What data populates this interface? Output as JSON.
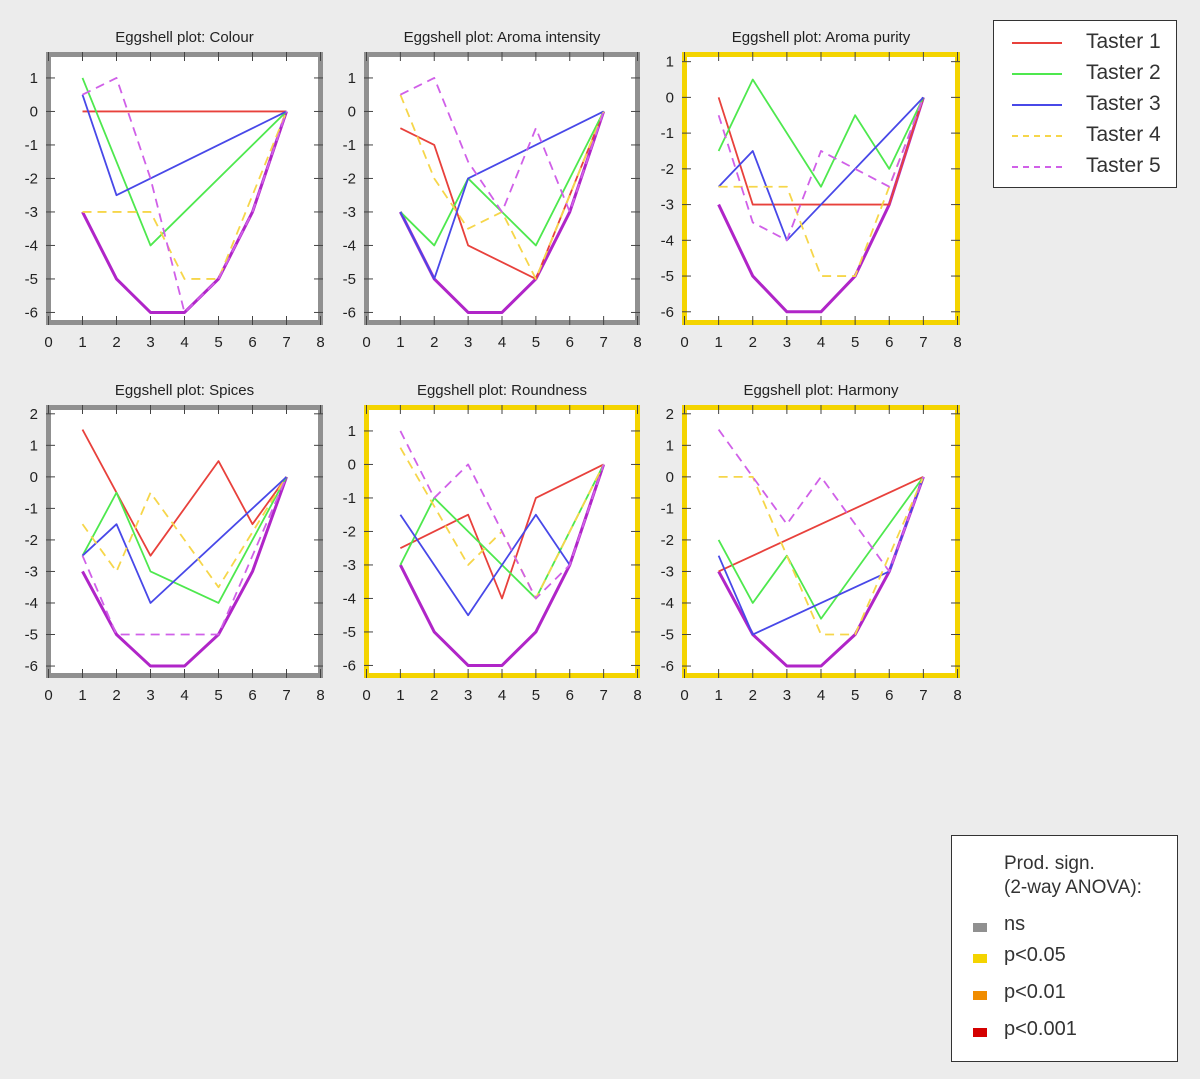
{
  "colors": {
    "background": "#ececec",
    "ns": "#909090",
    "p05": "#f4d400",
    "p01": "#f08c00",
    "p001": "#d40000",
    "envelope": "#b025c8"
  },
  "legend": {
    "items": [
      {
        "label": "Taster 1",
        "color": "#e8413c",
        "dash": false
      },
      {
        "label": "Taster 2",
        "color": "#4ee84e",
        "dash": false
      },
      {
        "label": "Taster 3",
        "color": "#4848e8",
        "dash": false
      },
      {
        "label": "Taster 4",
        "color": "#f6d64a",
        "dash": true
      },
      {
        "label": "Taster 5",
        "color": "#d060e8",
        "dash": true
      }
    ]
  },
  "significance_legend": {
    "title_line1": "Prod. sign.",
    "title_line2": "(2-way ANOVA):",
    "items": [
      {
        "label": "ns",
        "color": "#909090"
      },
      {
        "label": "p<0.05",
        "color": "#f4d400"
      },
      {
        "label": "p<0.01",
        "color": "#f08c00"
      },
      {
        "label": "p<0.001",
        "color": "#d40000"
      }
    ]
  },
  "chart_data": [
    {
      "type": "line",
      "title": "Eggshell plot: Colour",
      "significance": "ns",
      "xlim": [
        0,
        8
      ],
      "ylim": [
        -6.3,
        1.7
      ],
      "xticks": [
        0,
        1,
        2,
        3,
        4,
        5,
        6,
        7,
        8
      ],
      "yticks": [
        1,
        0,
        -1,
        -2,
        -3,
        -4,
        -5,
        -6
      ],
      "envelope": {
        "x": [
          1,
          2,
          3,
          4,
          5,
          6,
          7
        ],
        "y": [
          -3,
          -5,
          -6,
          -6,
          -5,
          -3,
          0
        ]
      },
      "series": [
        {
          "name": "Taster 1",
          "x": [
            1,
            7
          ],
          "y": [
            0,
            0
          ]
        },
        {
          "name": "Taster 2",
          "x": [
            1,
            3,
            7
          ],
          "y": [
            1,
            -4,
            0
          ]
        },
        {
          "name": "Taster 3",
          "x": [
            1,
            2,
            7
          ],
          "y": [
            0.5,
            -2.5,
            0
          ]
        },
        {
          "name": "Taster 4",
          "x": [
            1,
            3,
            4,
            5,
            7
          ],
          "y": [
            -3,
            -3,
            -5,
            -5,
            0
          ]
        },
        {
          "name": "Taster 5",
          "x": [
            1,
            2,
            3,
            4,
            5,
            6,
            7
          ],
          "y": [
            0.5,
            1,
            -2,
            -6,
            -5,
            -3,
            0
          ]
        }
      ]
    },
    {
      "type": "line",
      "title": "Eggshell plot: Aroma intensity",
      "significance": "ns",
      "xlim": [
        0,
        8
      ],
      "ylim": [
        -6.3,
        1.7
      ],
      "xticks": [
        0,
        1,
        2,
        3,
        4,
        5,
        6,
        7,
        8
      ],
      "yticks": [
        1,
        0,
        -1,
        -2,
        -3,
        -4,
        -5,
        -6
      ],
      "envelope": {
        "x": [
          1,
          2,
          3,
          4,
          5,
          6,
          7
        ],
        "y": [
          -3,
          -5,
          -6,
          -6,
          -5,
          -3,
          0
        ]
      },
      "series": [
        {
          "name": "Taster 1",
          "x": [
            1,
            2,
            3,
            5,
            7
          ],
          "y": [
            -0.5,
            -1,
            -4,
            -5,
            0
          ]
        },
        {
          "name": "Taster 2",
          "x": [
            1,
            2,
            3,
            5,
            7
          ],
          "y": [
            -3,
            -4,
            -2,
            -4,
            0
          ]
        },
        {
          "name": "Taster 3",
          "x": [
            1,
            2,
            3,
            7
          ],
          "y": [
            -3,
            -5,
            -2,
            0
          ]
        },
        {
          "name": "Taster 4",
          "x": [
            1,
            2,
            3,
            4,
            5,
            7
          ],
          "y": [
            0.5,
            -2,
            -3.5,
            -3,
            -5,
            0
          ]
        },
        {
          "name": "Taster 5",
          "x": [
            1,
            2,
            3,
            4,
            5,
            6,
            7
          ],
          "y": [
            0.5,
            1,
            -1.5,
            -3,
            -0.5,
            -3,
            0
          ]
        }
      ]
    },
    {
      "type": "line",
      "title": "Eggshell plot: Aroma purity",
      "significance": "p<0.05",
      "xlim": [
        0,
        8
      ],
      "ylim": [
        -6.3,
        1.2
      ],
      "xticks": [
        0,
        1,
        2,
        3,
        4,
        5,
        6,
        7,
        8
      ],
      "yticks": [
        1,
        0,
        -1,
        -2,
        -3,
        -4,
        -5,
        -6
      ],
      "envelope": {
        "x": [
          1,
          2,
          3,
          4,
          5,
          6,
          7
        ],
        "y": [
          -3,
          -5,
          -6,
          -6,
          -5,
          -3,
          0
        ]
      },
      "series": [
        {
          "name": "Taster 1",
          "x": [
            1,
            2,
            6,
            7
          ],
          "y": [
            0,
            -3,
            -3,
            0
          ]
        },
        {
          "name": "Taster 2",
          "x": [
            1,
            2,
            4,
            5,
            6,
            7
          ],
          "y": [
            -1.5,
            0.5,
            -2.5,
            -0.5,
            -2,
            0
          ]
        },
        {
          "name": "Taster 3",
          "x": [
            1,
            2,
            3,
            7
          ],
          "y": [
            -2.5,
            -1.5,
            -4,
            0
          ]
        },
        {
          "name": "Taster 4",
          "x": [
            1,
            3,
            4,
            5,
            7
          ],
          "y": [
            -2.5,
            -2.5,
            -5,
            -5,
            0
          ]
        },
        {
          "name": "Taster 5",
          "x": [
            1,
            2,
            3,
            4,
            6,
            7
          ],
          "y": [
            -0.5,
            -3.5,
            -4,
            -1.5,
            -2.5,
            0
          ]
        }
      ]
    },
    {
      "type": "line",
      "title": "Eggshell plot: Spices",
      "significance": "ns",
      "xlim": [
        0,
        8
      ],
      "ylim": [
        -6.3,
        2.2
      ],
      "xticks": [
        0,
        1,
        2,
        3,
        4,
        5,
        6,
        7,
        8
      ],
      "yticks": [
        2,
        1,
        0,
        -1,
        -2,
        -3,
        -4,
        -5,
        -6
      ],
      "envelope": {
        "x": [
          1,
          2,
          3,
          4,
          5,
          6,
          7
        ],
        "y": [
          -3,
          -5,
          -6,
          -6,
          -5,
          -3,
          0
        ]
      },
      "series": [
        {
          "name": "Taster 1",
          "x": [
            1,
            3,
            5,
            6,
            7
          ],
          "y": [
            1.5,
            -2.5,
            0.5,
            -1.5,
            0
          ]
        },
        {
          "name": "Taster 2",
          "x": [
            1,
            2,
            3,
            5,
            7
          ],
          "y": [
            -2.5,
            -0.5,
            -3,
            -4,
            0
          ]
        },
        {
          "name": "Taster 3",
          "x": [
            1,
            2,
            3,
            7
          ],
          "y": [
            -2.5,
            -1.5,
            -4,
            0
          ]
        },
        {
          "name": "Taster 4",
          "x": [
            1,
            2,
            3,
            5,
            7
          ],
          "y": [
            -1.5,
            -3,
            -0.5,
            -3.5,
            0
          ]
        },
        {
          "name": "Taster 5",
          "x": [
            1,
            2,
            5,
            7
          ],
          "y": [
            -2.5,
            -5,
            -5,
            0
          ]
        }
      ]
    },
    {
      "type": "line",
      "title": "Eggshell plot: Roundness",
      "significance": "p<0.05",
      "xlim": [
        0,
        8
      ],
      "ylim": [
        -6.3,
        1.7
      ],
      "xticks": [
        0,
        1,
        2,
        3,
        4,
        5,
        6,
        7,
        8
      ],
      "yticks": [
        1,
        0,
        -1,
        -2,
        -3,
        -4,
        -5,
        -6
      ],
      "envelope": {
        "x": [
          1,
          2,
          3,
          4,
          5,
          6,
          7
        ],
        "y": [
          -3,
          -5,
          -6,
          -6,
          -5,
          -3,
          0
        ]
      },
      "series": [
        {
          "name": "Taster 1",
          "x": [
            1,
            3,
            4,
            5,
            7
          ],
          "y": [
            -2.5,
            -1.5,
            -4,
            -1,
            0
          ]
        },
        {
          "name": "Taster 2",
          "x": [
            1,
            2,
            5,
            7
          ],
          "y": [
            -3,
            -1,
            -4,
            0
          ]
        },
        {
          "name": "Taster 3",
          "x": [
            1,
            3,
            5,
            6
          ],
          "y": [
            -1.5,
            -4.5,
            -1.5,
            -3
          ]
        },
        {
          "name": "Taster 4",
          "x": [
            1,
            3,
            4,
            5,
            7
          ],
          "y": [
            0.5,
            -3,
            -2,
            -4,
            0
          ]
        },
        {
          "name": "Taster 5",
          "x": [
            1,
            2,
            3,
            5,
            6,
            7
          ],
          "y": [
            1,
            -1,
            0,
            -4,
            -3,
            0
          ]
        }
      ]
    },
    {
      "type": "line",
      "title": "Eggshell plot: Harmony",
      "significance": "p<0.05",
      "xlim": [
        0,
        8
      ],
      "ylim": [
        -6.3,
        2.2
      ],
      "xticks": [
        0,
        1,
        2,
        3,
        4,
        5,
        6,
        7,
        8
      ],
      "yticks": [
        2,
        1,
        0,
        -1,
        -2,
        -3,
        -4,
        -5,
        -6
      ],
      "envelope": {
        "x": [
          1,
          2,
          3,
          4,
          5,
          6,
          7
        ],
        "y": [
          -3,
          -5,
          -6,
          -6,
          -5,
          -3,
          0
        ]
      },
      "series": [
        {
          "name": "Taster 1",
          "x": [
            1,
            7
          ],
          "y": [
            -3,
            0
          ]
        },
        {
          "name": "Taster 2",
          "x": [
            1,
            2,
            3,
            4,
            7
          ],
          "y": [
            -2,
            -4,
            -2.5,
            -4.5,
            0
          ]
        },
        {
          "name": "Taster 3",
          "x": [
            1,
            2,
            6,
            7
          ],
          "y": [
            -2.5,
            -5,
            -3,
            0
          ]
        },
        {
          "name": "Taster 4",
          "x": [
            1,
            2,
            4,
            5,
            7
          ],
          "y": [
            0,
            0,
            -5,
            -5,
            0
          ]
        },
        {
          "name": "Taster 5",
          "x": [
            1,
            3,
            4,
            6,
            7
          ],
          "y": [
            1.5,
            -1.5,
            0,
            -3,
            0
          ]
        }
      ]
    }
  ]
}
